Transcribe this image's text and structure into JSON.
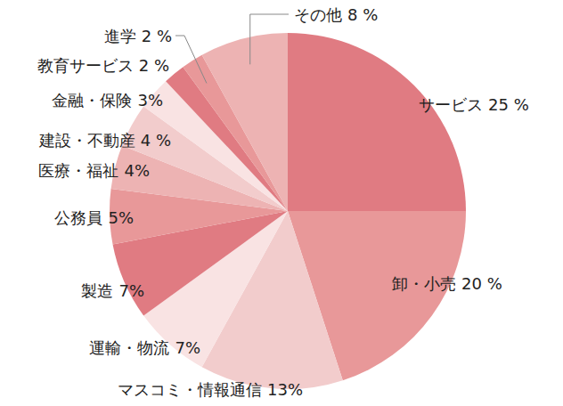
{
  "chart_data": {
    "type": "pie",
    "categories": [
      "サービス",
      "卸・小売",
      "マスコミ・情報通信",
      "運輸・物流",
      "製造",
      "公務員",
      "医療・福祉",
      "建設・不動産",
      "金融・保険",
      "教育サービス",
      "進学",
      "その他"
    ],
    "values": [
      25,
      20,
      13,
      7,
      7,
      5,
      4,
      4,
      3,
      2,
      2,
      8
    ],
    "value_labels": [
      "25 %",
      "20 %",
      "13%",
      "7%",
      "7%",
      "5%",
      "4%",
      "4 %",
      "3%",
      "2 %",
      "2 %",
      "8 %"
    ],
    "colors": [
      "#e07b82",
      "#e89899",
      "#f2cccc",
      "#f9e3e3",
      "#e07b82",
      "#e89899",
      "#edb3b3",
      "#f2cccc",
      "#f9e3e3",
      "#e07b82",
      "#e89899",
      "#edb3b3"
    ],
    "data_labels": true
  }
}
